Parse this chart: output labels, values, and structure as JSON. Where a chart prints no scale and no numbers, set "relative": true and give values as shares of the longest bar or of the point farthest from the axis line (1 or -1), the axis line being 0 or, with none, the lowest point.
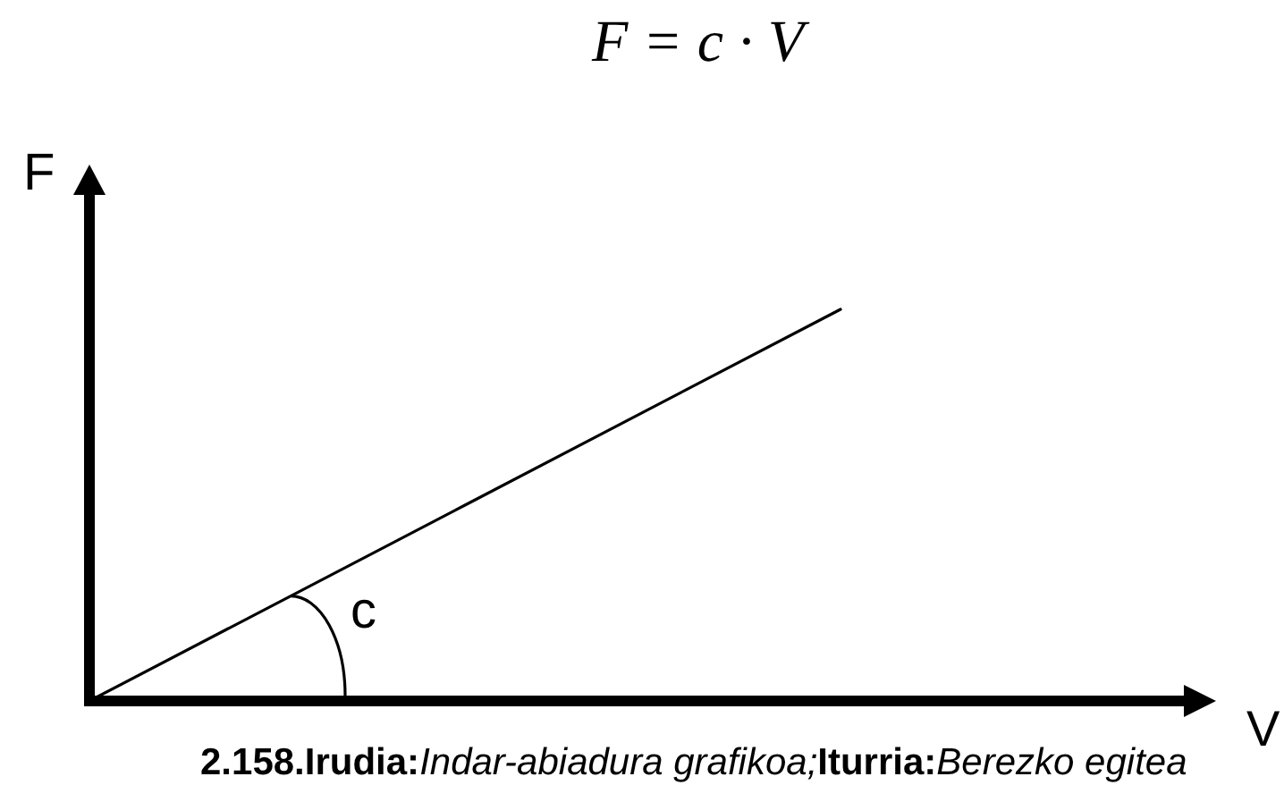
{
  "chart_data": {
    "type": "line",
    "title": "F = c · V",
    "xlabel": "V",
    "ylabel": "F",
    "annotations": [
      "c",
      "2.158.Irudia:",
      "Indar-abiadura grafikoa;",
      "Iturria:",
      "Berezko egitea"
    ],
    "categories": [
      null,
      null,
      null,
      null
    ],
    "series": [
      {
        "color": "#000000",
        "values": [
          0,
          0.5,
          1,
          null
        ]
      }
    ],
    "relative": true,
    "marker": "none"
  }
}
